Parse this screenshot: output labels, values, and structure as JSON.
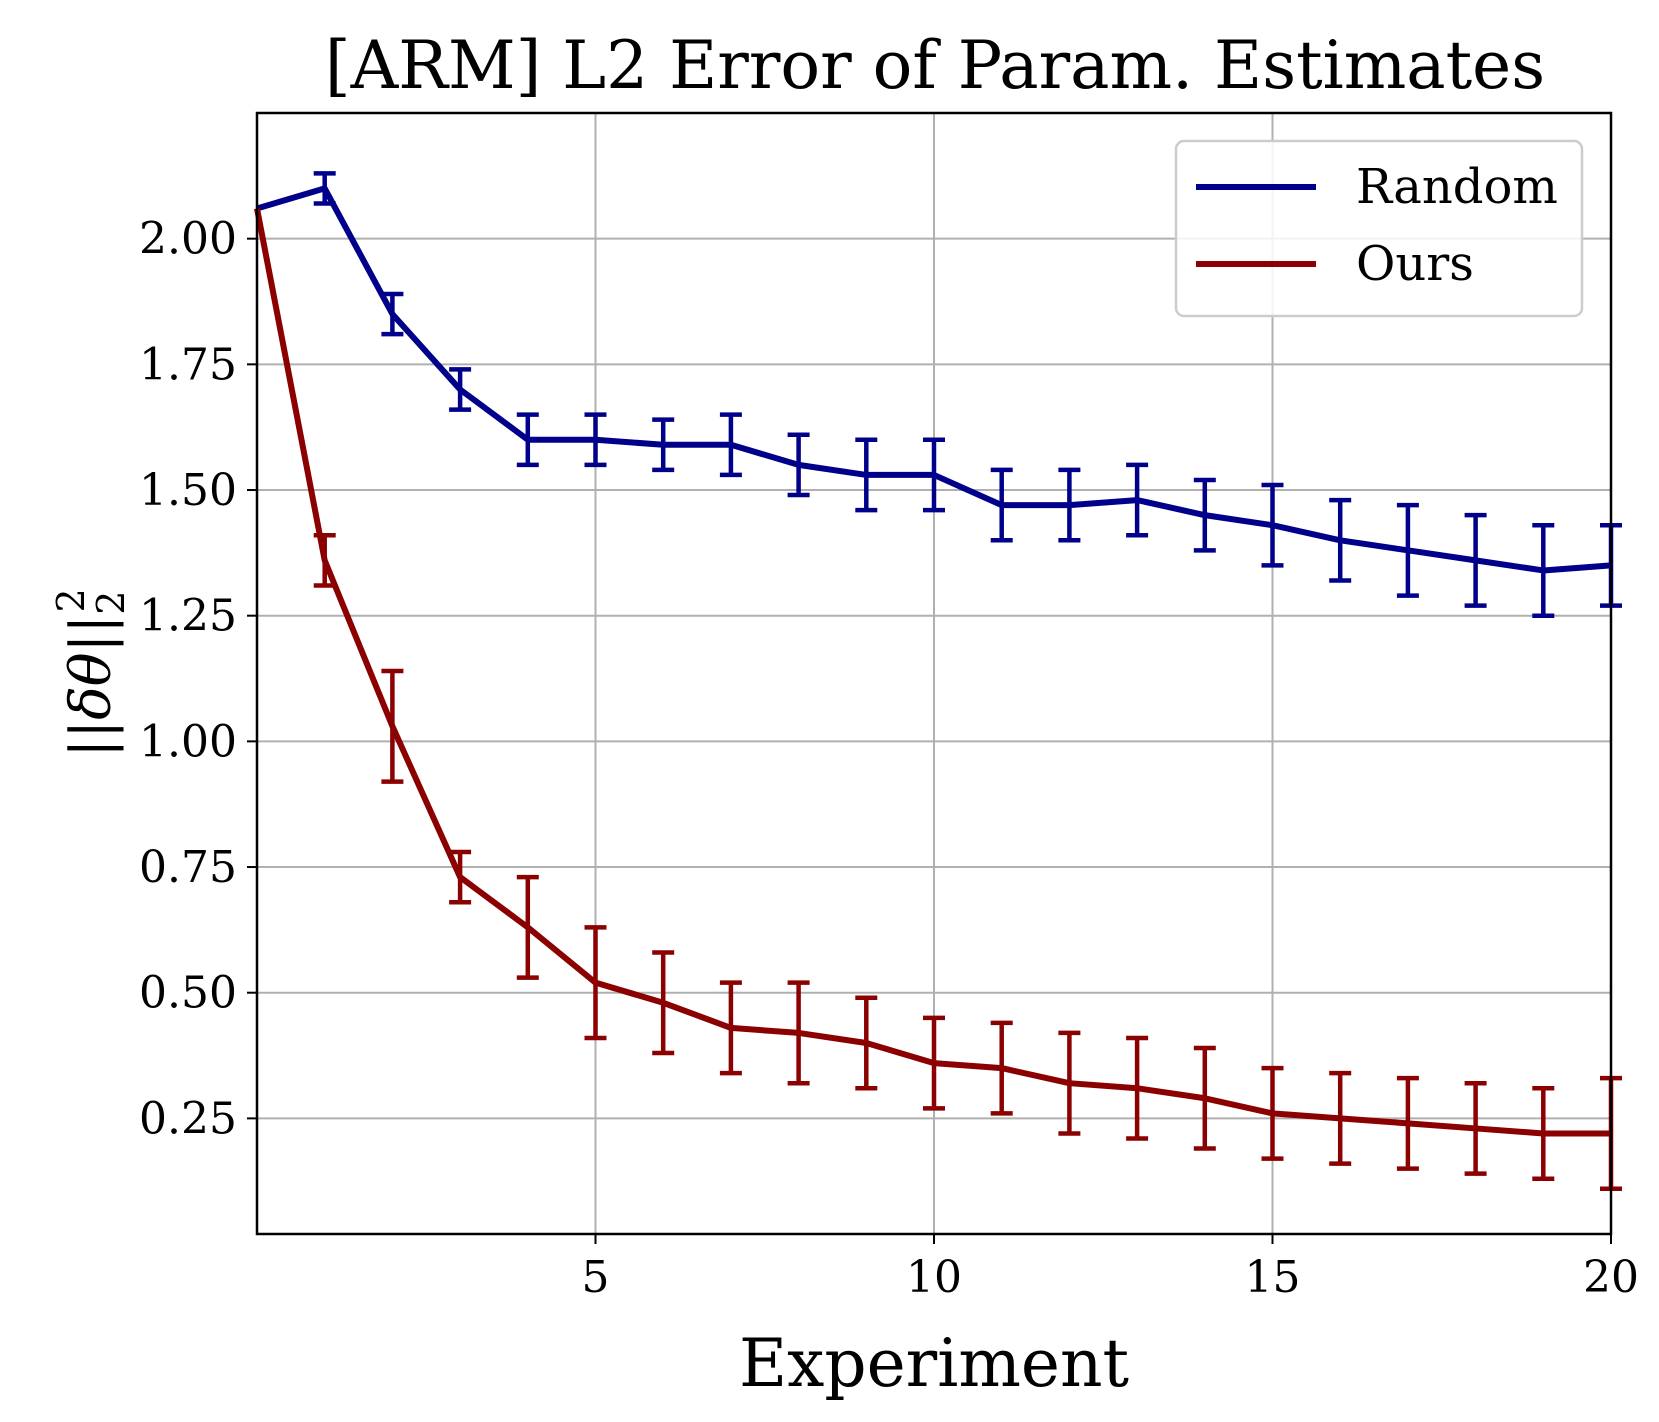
{
  "colors": {
    "random": "#00008b",
    "ours": "#8b0000",
    "grid": "#b0b0b0",
    "axis": "#000000",
    "legend_border": "#cccccc"
  },
  "chart_data": {
    "type": "line",
    "title": "[ARM] L2 Error of Param. Estimates",
    "xlabel": "Experiment",
    "ylabel": "||δθ||₂²",
    "ylabel_main": "||δθ||",
    "ylabel_sup": "2",
    "ylabel_sub": "2",
    "xlim": [
      0,
      20
    ],
    "ylim": [
      0.02,
      2.25
    ],
    "xticks": [
      5,
      10,
      15,
      20
    ],
    "xtick_labels": [
      "5",
      "10",
      "15",
      "20"
    ],
    "yticks": [
      0.25,
      0.5,
      0.75,
      1.0,
      1.25,
      1.5,
      1.75,
      2.0
    ],
    "ytick_labels": [
      "0.25",
      "0.50",
      "0.75",
      "1.00",
      "1.25",
      "1.50",
      "1.75",
      "2.00"
    ],
    "grid": true,
    "legend_position": "top-right",
    "x": [
      0,
      1,
      2,
      3,
      4,
      5,
      6,
      7,
      8,
      9,
      10,
      11,
      12,
      13,
      14,
      15,
      16,
      17,
      18,
      19,
      20
    ],
    "series": [
      {
        "name": "Random",
        "values": [
          2.06,
          2.1,
          1.85,
          1.7,
          1.6,
          1.6,
          1.59,
          1.59,
          1.55,
          1.53,
          1.53,
          1.47,
          1.47,
          1.48,
          1.45,
          1.43,
          1.4,
          1.38,
          1.36,
          1.34,
          1.35
        ],
        "errors": [
          0.0,
          0.03,
          0.04,
          0.04,
          0.05,
          0.05,
          0.05,
          0.06,
          0.06,
          0.07,
          0.07,
          0.07,
          0.07,
          0.07,
          0.07,
          0.08,
          0.08,
          0.09,
          0.09,
          0.09,
          0.08
        ]
      },
      {
        "name": "Ours",
        "values": [
          2.06,
          1.36,
          1.03,
          0.73,
          0.63,
          0.52,
          0.48,
          0.43,
          0.42,
          0.4,
          0.36,
          0.35,
          0.32,
          0.31,
          0.29,
          0.26,
          0.25,
          0.24,
          0.23,
          0.22,
          0.22
        ],
        "errors": [
          0.0,
          0.05,
          0.11,
          0.05,
          0.1,
          0.11,
          0.1,
          0.09,
          0.1,
          0.09,
          0.09,
          0.09,
          0.1,
          0.1,
          0.1,
          0.09,
          0.09,
          0.09,
          0.09,
          0.09,
          0.11
        ]
      }
    ]
  }
}
